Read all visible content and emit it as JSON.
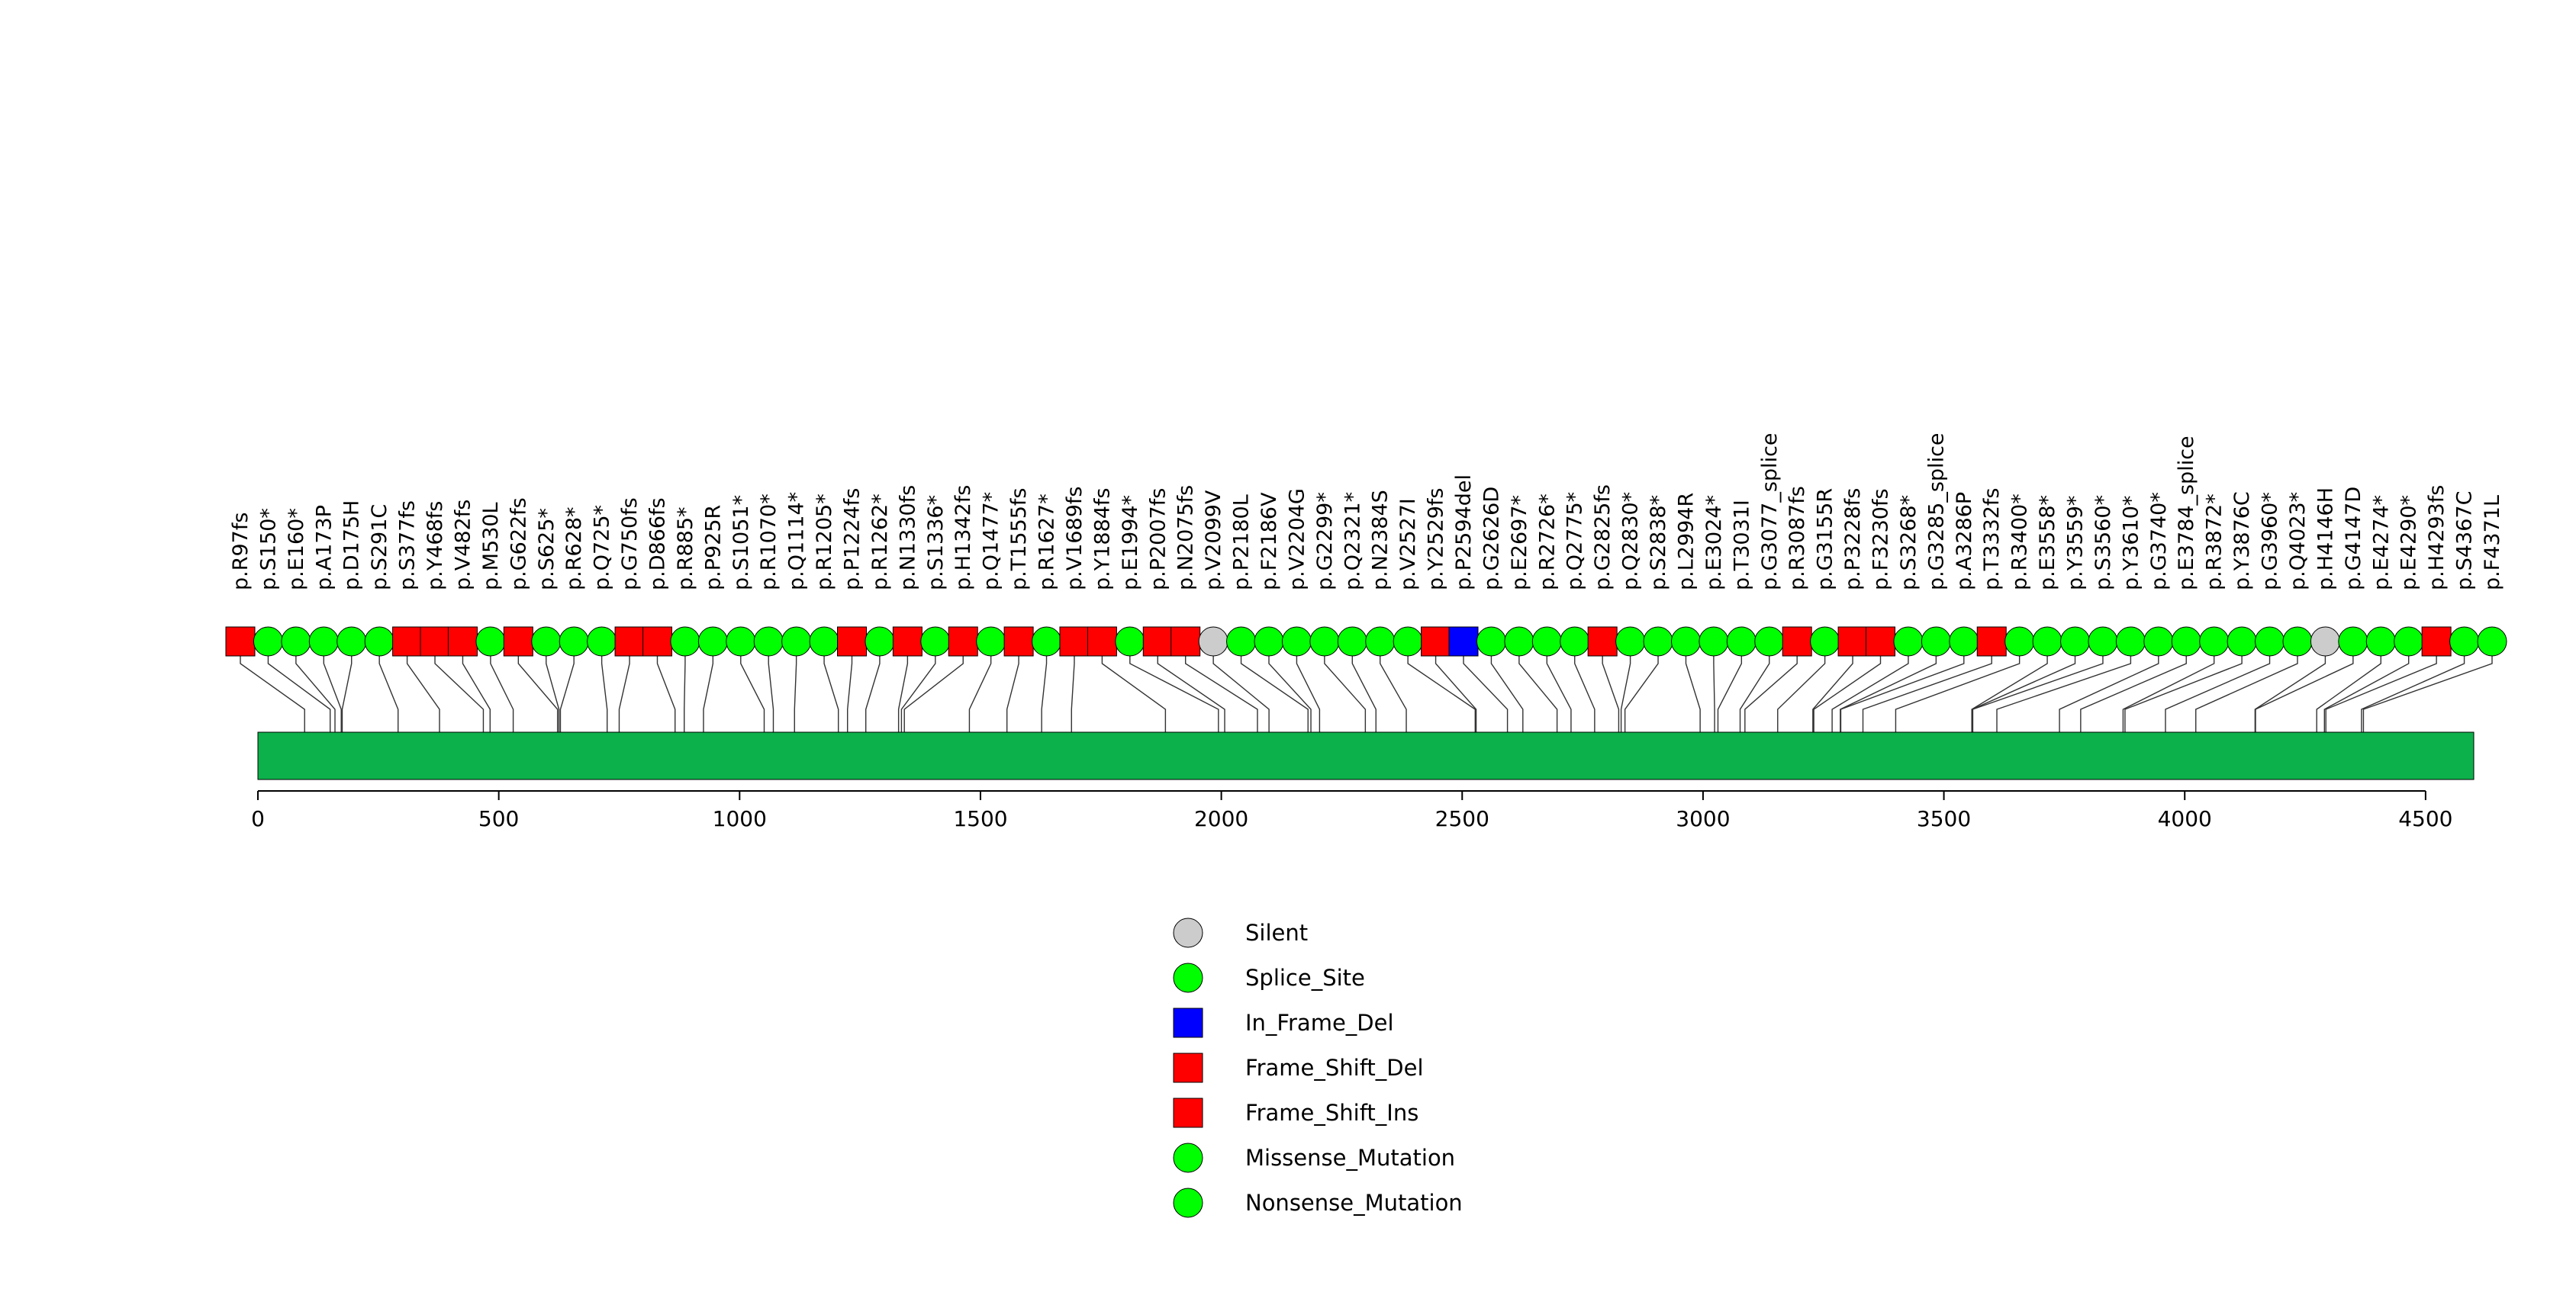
{
  "chart_data": {
    "type": "lollipop",
    "title": "",
    "xlabel": "",
    "ylabel": "",
    "protein_length": 4600,
    "xlim": [
      0,
      4600
    ],
    "x_ticks": [
      0,
      500,
      1000,
      1500,
      2000,
      2500,
      3000,
      3500,
      4000,
      4500
    ],
    "colors": {
      "protein_bar": "#0db14b",
      "missense": "#00ff00",
      "frameshift": "#ff0000",
      "inframe": "#0000ff",
      "silent": "#cccccc",
      "outline": "#000000",
      "connector": "#333333"
    },
    "legend": [
      {
        "label": "Silent",
        "shape": "circle",
        "color": "#cccccc"
      },
      {
        "label": "Splice_Site",
        "shape": "circle",
        "color": "#00ff00"
      },
      {
        "label": "In_Frame_Del",
        "shape": "square",
        "color": "#0000ff"
      },
      {
        "label": "Frame_Shift_Del",
        "shape": "square",
        "color": "#ff0000"
      },
      {
        "label": "Frame_Shift_Ins",
        "shape": "square",
        "color": "#ff0000"
      },
      {
        "label": "Missense_Mutation",
        "shape": "circle",
        "color": "#00ff00"
      },
      {
        "label": "Nonsense_Mutation",
        "shape": "circle",
        "color": "#00ff00"
      }
    ],
    "mutations": [
      {
        "label": "p.R97fs",
        "pos": 97,
        "type": "fs"
      },
      {
        "label": "p.S150*",
        "pos": 150,
        "type": "ms"
      },
      {
        "label": "p.E160*",
        "pos": 160,
        "type": "ms"
      },
      {
        "label": "p.A173P",
        "pos": 173,
        "type": "ms"
      },
      {
        "label": "p.D175H",
        "pos": 175,
        "type": "ms"
      },
      {
        "label": "p.S291C",
        "pos": 291,
        "type": "ms"
      },
      {
        "label": "p.S377fs",
        "pos": 377,
        "type": "fs"
      },
      {
        "label": "p.Y468fs",
        "pos": 468,
        "type": "fs"
      },
      {
        "label": "p.V482fs",
        "pos": 482,
        "type": "fs"
      },
      {
        "label": "p.M530L",
        "pos": 530,
        "type": "ms"
      },
      {
        "label": "p.G622fs",
        "pos": 622,
        "type": "fs"
      },
      {
        "label": "p.S625*",
        "pos": 625,
        "type": "ms"
      },
      {
        "label": "p.R628*",
        "pos": 628,
        "type": "ms"
      },
      {
        "label": "p.Q725*",
        "pos": 725,
        "type": "ms"
      },
      {
        "label": "p.G750fs",
        "pos": 750,
        "type": "fs"
      },
      {
        "label": "p.D866fs",
        "pos": 866,
        "type": "fs"
      },
      {
        "label": "p.R885*",
        "pos": 885,
        "type": "ms"
      },
      {
        "label": "p.P925R",
        "pos": 925,
        "type": "ms"
      },
      {
        "label": "p.S1051*",
        "pos": 1051,
        "type": "ms"
      },
      {
        "label": "p.R1070*",
        "pos": 1070,
        "type": "ms"
      },
      {
        "label": "p.Q1114*",
        "pos": 1114,
        "type": "ms"
      },
      {
        "label": "p.R1205*",
        "pos": 1205,
        "type": "ms"
      },
      {
        "label": "p.P1224fs",
        "pos": 1224,
        "type": "fs"
      },
      {
        "label": "p.R1262*",
        "pos": 1262,
        "type": "ms"
      },
      {
        "label": "p.N1330fs",
        "pos": 1330,
        "type": "fs"
      },
      {
        "label": "p.S1336*",
        "pos": 1336,
        "type": "ms"
      },
      {
        "label": "p.H1342fs",
        "pos": 1342,
        "type": "fs"
      },
      {
        "label": "p.Q1477*",
        "pos": 1477,
        "type": "ms"
      },
      {
        "label": "p.T1555fs",
        "pos": 1555,
        "type": "fs"
      },
      {
        "label": "p.R1627*",
        "pos": 1627,
        "type": "ms"
      },
      {
        "label": "p.V1689fs",
        "pos": 1689,
        "type": "fs"
      },
      {
        "label": "p.Y1884fs",
        "pos": 1884,
        "type": "fs"
      },
      {
        "label": "p.E1994*",
        "pos": 1994,
        "type": "ms"
      },
      {
        "label": "p.P2007fs",
        "pos": 2007,
        "type": "fs"
      },
      {
        "label": "p.N2075fs",
        "pos": 2075,
        "type": "fs"
      },
      {
        "label": "p.V2099V",
        "pos": 2099,
        "type": "silent"
      },
      {
        "label": "p.P2180L",
        "pos": 2180,
        "type": "ms"
      },
      {
        "label": "p.F2186V",
        "pos": 2186,
        "type": "ms"
      },
      {
        "label": "p.V2204G",
        "pos": 2204,
        "type": "ms"
      },
      {
        "label": "p.G2299*",
        "pos": 2299,
        "type": "ms"
      },
      {
        "label": "p.Q2321*",
        "pos": 2321,
        "type": "ms"
      },
      {
        "label": "p.N2384S",
        "pos": 2384,
        "type": "ms"
      },
      {
        "label": "p.V2527I",
        "pos": 2527,
        "type": "ms"
      },
      {
        "label": "p.Y2529fs",
        "pos": 2529,
        "type": "fs"
      },
      {
        "label": "p.P2594del",
        "pos": 2594,
        "type": "inframe"
      },
      {
        "label": "p.G2626D",
        "pos": 2626,
        "type": "ms"
      },
      {
        "label": "p.E2697*",
        "pos": 2697,
        "type": "ms"
      },
      {
        "label": "p.R2726*",
        "pos": 2726,
        "type": "ms"
      },
      {
        "label": "p.Q2775*",
        "pos": 2775,
        "type": "ms"
      },
      {
        "label": "p.G2825fs",
        "pos": 2825,
        "type": "fs"
      },
      {
        "label": "p.Q2830*",
        "pos": 2830,
        "type": "ms"
      },
      {
        "label": "p.S2838*",
        "pos": 2838,
        "type": "ms"
      },
      {
        "label": "p.L2994R",
        "pos": 2994,
        "type": "ms"
      },
      {
        "label": "p.E3024*",
        "pos": 3024,
        "type": "ms"
      },
      {
        "label": "p.T3031I",
        "pos": 3031,
        "type": "ms"
      },
      {
        "label": "p.G3077_splice",
        "pos": 3077,
        "type": "ms"
      },
      {
        "label": "p.R3087fs",
        "pos": 3087,
        "type": "fs"
      },
      {
        "label": "p.G3155R",
        "pos": 3155,
        "type": "ms"
      },
      {
        "label": "p.P3228fs",
        "pos": 3228,
        "type": "fs"
      },
      {
        "label": "p.F3230fs",
        "pos": 3230,
        "type": "fs"
      },
      {
        "label": "p.S3268*",
        "pos": 3268,
        "type": "ms"
      },
      {
        "label": "p.G3285_splice",
        "pos": 3285,
        "type": "ms"
      },
      {
        "label": "p.A3286P",
        "pos": 3286,
        "type": "ms"
      },
      {
        "label": "p.T3332fs",
        "pos": 3332,
        "type": "fs"
      },
      {
        "label": "p.R3400*",
        "pos": 3400,
        "type": "ms"
      },
      {
        "label": "p.E3558*",
        "pos": 3558,
        "type": "ms"
      },
      {
        "label": "p.Y3559*",
        "pos": 3559,
        "type": "ms"
      },
      {
        "label": "p.S3560*",
        "pos": 3560,
        "type": "ms"
      },
      {
        "label": "p.Y3610*",
        "pos": 3610,
        "type": "ms"
      },
      {
        "label": "p.G3740*",
        "pos": 3740,
        "type": "ms"
      },
      {
        "label": "p.E3784_splice",
        "pos": 3784,
        "type": "ms"
      },
      {
        "label": "p.R3872*",
        "pos": 3872,
        "type": "ms"
      },
      {
        "label": "p.Y3876C",
        "pos": 3876,
        "type": "ms"
      },
      {
        "label": "p.G3960*",
        "pos": 3960,
        "type": "ms"
      },
      {
        "label": "p.Q4023*",
        "pos": 4023,
        "type": "ms"
      },
      {
        "label": "p.H4146H",
        "pos": 4146,
        "type": "silent"
      },
      {
        "label": "p.G4147D",
        "pos": 4147,
        "type": "ms"
      },
      {
        "label": "p.E4274*",
        "pos": 4274,
        "type": "ms"
      },
      {
        "label": "p.E4290*",
        "pos": 4290,
        "type": "ms"
      },
      {
        "label": "p.H4293fs",
        "pos": 4293,
        "type": "fs"
      },
      {
        "label": "p.S4367C",
        "pos": 4367,
        "type": "ms"
      },
      {
        "label": "p.F4371L",
        "pos": 4371,
        "type": "ms"
      }
    ]
  }
}
